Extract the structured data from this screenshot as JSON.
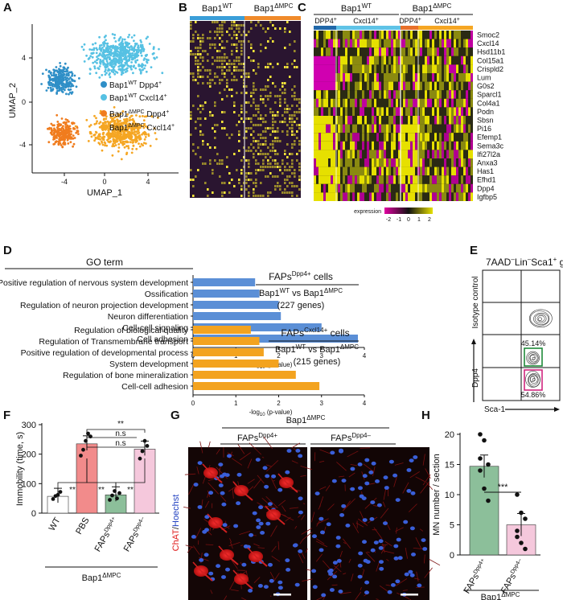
{
  "panels": {
    "A": "A",
    "B": "B",
    "C": "C",
    "D": "D",
    "E": "E",
    "F": "F",
    "G": "G",
    "H": "H"
  },
  "colors": {
    "bap_wt": "#2f8fc7",
    "bap_wt_light": "#56c1e3",
    "mpc_dark": "#f07c1e",
    "mpc_light": "#f5a623",
    "bar_blue": "#5b8fd6",
    "bar_orange": "#f3a31f",
    "pbs": "#f28b8b",
    "dpp4pos": "#8cbf9a",
    "dpp4neg": "#f5c8dc",
    "magenta": "#e0007a",
    "yellow": "#dcd400",
    "green_gate": "#1f8a3a",
    "pink_gate": "#d1267e"
  },
  "a": {
    "xlabel": "UMAP_1",
    "ylabel": "UMAP_2",
    "xticks": [
      "-4",
      "0",
      "4"
    ],
    "yticks": [
      "4",
      "0",
      "-4"
    ],
    "legend": [
      {
        "pre": "Bap1",
        "sup": "WT",
        "post": " Dpp4",
        "tail": "+"
      },
      {
        "pre": "Bap1",
        "sup": "WT",
        "post": " Cxcl14",
        "tail": "+"
      },
      {
        "pre": "Bap1",
        "sup": "ΔMPC",
        "post": " Dpp4",
        "tail": "+"
      },
      {
        "pre": "Bap1",
        "sup": "ΔMPC",
        "post": " Cxcl14",
        "tail": "+"
      }
    ]
  },
  "b": {
    "g1": "Bap1",
    "g1sup": "WT",
    "g2": "Bap1",
    "g2sup": "ΔMPC"
  },
  "c": {
    "g1": "Bap1",
    "g1sup": "WT",
    "g2": "Bap1",
    "g2sup": "ΔMPC",
    "sub1": "DPP4",
    "sub1sup": "+",
    "sub2": "Cxcl14",
    "sub2sup": "+",
    "genes": [
      "Smoc2",
      "Cxcl14",
      "Hsd11b1",
      "Col15a1",
      "Crispld2",
      "Lum",
      "G0s2",
      "Sparcl1",
      "Col4a1",
      "Podn",
      "Sbsn",
      "Pi16",
      "Efemp1",
      "Sema3c",
      "Ifi27l2a",
      "Anxa3",
      "Has1",
      "Efhd1",
      "Dpp4",
      "Igfbp5"
    ],
    "legend_title": "expression",
    "legend_ticks": [
      "-2",
      "-1",
      "0",
      "1",
      "2"
    ]
  },
  "d": {
    "go_title": "GO term",
    "xlabel_pre": "-log",
    "xlabel_sub": "10",
    "xlabel_post": " (p-value)",
    "xticks": [
      "0",
      "1",
      "2",
      "3",
      "4"
    ],
    "chart_data": [
      {
        "type": "bar",
        "title": "",
        "xlim": [
          0,
          4
        ],
        "categories": [
          "Positive regulation of nervous system development",
          "Ossification",
          "Regulation of neuron projection development",
          "Neuron differentiation",
          "Cell-cell signaling",
          "Cell adhesion"
        ],
        "values": [
          1.45,
          1.55,
          2.0,
          2.05,
          3.0,
          3.85
        ]
      },
      {
        "type": "bar",
        "title": "",
        "xlim": [
          0,
          4
        ],
        "categories": [
          "Regulation of biological quality",
          "Regulation of Transmembrane transport",
          "Positive regulation of developmental process",
          "System development",
          "Regulation of bone mineralization",
          "Cell-cell adhesion"
        ],
        "values": [
          1.35,
          1.55,
          1.65,
          2.0,
          2.4,
          2.95
        ]
      }
    ],
    "box1": {
      "title": "FAPs",
      "sup": "Dpp4+",
      "suffix": " cells",
      "cmp_a": "Bap1",
      "cmp_a_sup": "WT",
      "vs": " vs ",
      "cmp_b": "Bap1",
      "cmp_b_sup": "ΔMPC",
      "genes": "(227 genes)"
    },
    "box2": {
      "title": "FAPs",
      "sup": "Cxcl14+",
      "suffix": " cells",
      "cmp_a": "Bap1",
      "cmp_a_sup": "WT",
      "vs": " vs ",
      "cmp_b": "Bap1",
      "cmp_b_sup": "ΔMPC",
      "genes": "(215 genes)"
    }
  },
  "e": {
    "title": "7AAD",
    "title_sup1": "–",
    "title_mid": "Lin",
    "title_sup2": "–",
    "title_mid2": "Sca1",
    "title_sup3": "+",
    "title_end": " gated",
    "isotype": "Isotype control",
    "ylab": "Dpp4",
    "xlab": "Sca-1",
    "pct_top": "45.14%",
    "pct_bot": "54.86%"
  },
  "f": {
    "ylabel": "Immobility (time, s)",
    "yticks": [
      "0",
      "100",
      "200",
      "300"
    ],
    "chart_data": {
      "type": "bar",
      "categories": [
        "WT",
        "PBS",
        "FAPs Dpp4+",
        "FAPs Dpp4–"
      ],
      "values": [
        57,
        235,
        62,
        217
      ],
      "ylim": [
        0,
        300
      ],
      "points": [
        [
          48,
          58,
          62,
          72
        ],
        [
          195,
          215,
          245,
          270,
          260
        ],
        [
          45,
          60,
          75,
          50,
          68
        ],
        [
          185,
          210,
          245,
          228
        ]
      ]
    },
    "xlab": [
      "WT",
      "PBS",
      "FAPs",
      "FAPs"
    ],
    "xsup": [
      "",
      "",
      "Dpp4+",
      "Dpp4–"
    ],
    "sig": [
      "**",
      "**",
      "**",
      "**",
      "**",
      "n.s",
      "n.s"
    ],
    "group": "Bap1",
    "group_sup": "ΔMPC"
  },
  "g": {
    "group": "Bap1",
    "group_sup": "ΔMPC",
    "left": "FAPs",
    "left_sup": "Dpp4+",
    "right": "FAPs",
    "right_sup": "Dpp4–",
    "stain_a": "ChAT",
    "stain_sep": "/",
    "stain_b": "Hoechst"
  },
  "h": {
    "ylabel": "MN number / section",
    "yticks": [
      "0",
      "5",
      "10",
      "15",
      "20"
    ],
    "chart_data": {
      "type": "bar",
      "categories": [
        "FAPs Dpp4+",
        "FAPs Dpp4–"
      ],
      "values": [
        14.7,
        5.0
      ],
      "ylim": [
        0,
        20
      ],
      "points": [
        [
          20,
          19,
          15,
          14,
          11,
          9,
          16
        ],
        [
          10,
          7,
          6,
          4,
          2,
          1,
          3
        ]
      ]
    },
    "sig": "***",
    "xlab": [
      "FAPs",
      "FAPs"
    ],
    "xsup": [
      "Dpp4+",
      "Dpp4–"
    ],
    "group": "Bap1",
    "group_sup": "ΔMPC"
  }
}
